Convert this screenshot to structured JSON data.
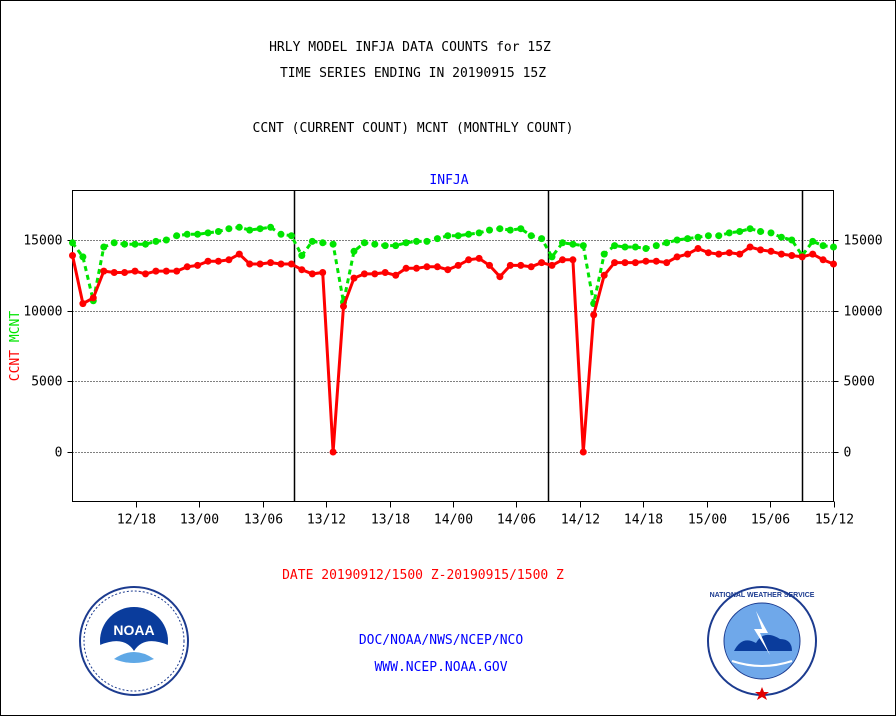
{
  "title_lines": [
    "HRLY MODEL INFJA DATA COUNTS for 15Z",
    "TIME SERIES ENDING IN 20190915 15Z"
  ],
  "subtitle": "CCNT (CURRENT COUNT) MCNT (MONTHLY COUNT)",
  "footer": {
    "org_line": "DOC/NOAA/NWS/NCEP/NCO",
    "url_line": "WWW.NCEP.NOAA.GOV"
  },
  "logos": {
    "left": {
      "name": "noaa-logo",
      "text": "NOAA"
    },
    "right": {
      "name": "nws-logo",
      "text": "NATIONAL WEATHER SERVICE"
    }
  },
  "chart_data": {
    "type": "line",
    "title": "INFJA",
    "xlabel": "DATE 20190912/1500 Z-20190915/1500 Z",
    "ylabel_left": [
      "CCNT",
      "MCNT"
    ],
    "ylim": [
      -3500,
      18500
    ],
    "yticks": [
      0,
      5000,
      10000,
      15000
    ],
    "ytick_labels": [
      "0",
      "5000",
      "10000",
      "15000"
    ],
    "grid": "horizontal dotted at y ticks",
    "x_start_hour": 15,
    "x_end_hour": 87,
    "xtick_hours": [
      21,
      27,
      33,
      39,
      45,
      51,
      57,
      63,
      69,
      75,
      81,
      87
    ],
    "xtick_labels": [
      "12/18",
      "13/00",
      "13/06",
      "13/12",
      "13/18",
      "14/00",
      "14/06",
      "14/12",
      "14/18",
      "15/00",
      "15/06",
      "15/12"
    ],
    "day_separators_hours": [
      36,
      60,
      84
    ],
    "series": [
      {
        "name": "CCNT",
        "color": "#ff0000",
        "values": [
          13900,
          10500,
          10900,
          12800,
          12700,
          12700,
          12800,
          12600,
          12800,
          12800,
          12800,
          13100,
          13200,
          13500,
          13500,
          13600,
          14000,
          13300,
          13300,
          13400,
          13300,
          13300,
          12900,
          12600,
          12700,
          0,
          10300,
          12300,
          12600,
          12600,
          12700,
          12500,
          13000,
          13000,
          13100,
          13100,
          12900,
          13200,
          13600,
          13700,
          13200,
          12400,
          13200,
          13200,
          13100,
          13400,
          13200,
          13600,
          13600,
          0,
          9700,
          12500,
          13400,
          13400,
          13400,
          13500,
          13500,
          13400,
          13800,
          14000,
          14400,
          14100,
          14000,
          14100,
          14000,
          14500,
          14300,
          14200,
          14000,
          13900,
          13800,
          14000,
          13600,
          13300
        ]
      },
      {
        "name": "MCNT",
        "color": "#00e400",
        "values": [
          14800,
          13800,
          10700,
          14500,
          14800,
          14700,
          14700,
          14700,
          14900,
          15000,
          15300,
          15400,
          15400,
          15500,
          15600,
          15800,
          15900,
          15700,
          15800,
          15900,
          15400,
          15300,
          13900,
          14900,
          14800,
          14700,
          10600,
          14200,
          14800,
          14700,
          14600,
          14600,
          14800,
          14900,
          14900,
          15100,
          15300,
          15300,
          15400,
          15500,
          15700,
          15800,
          15700,
          15800,
          15300,
          15100,
          13800,
          14800,
          14700,
          14600,
          10500,
          14000,
          14600,
          14500,
          14500,
          14400,
          14600,
          14800,
          15000,
          15100,
          15200,
          15300,
          15300,
          15500,
          15600,
          15800,
          15600,
          15500,
          15200,
          15000,
          13900,
          14900,
          14600,
          14500
        ]
      }
    ]
  }
}
